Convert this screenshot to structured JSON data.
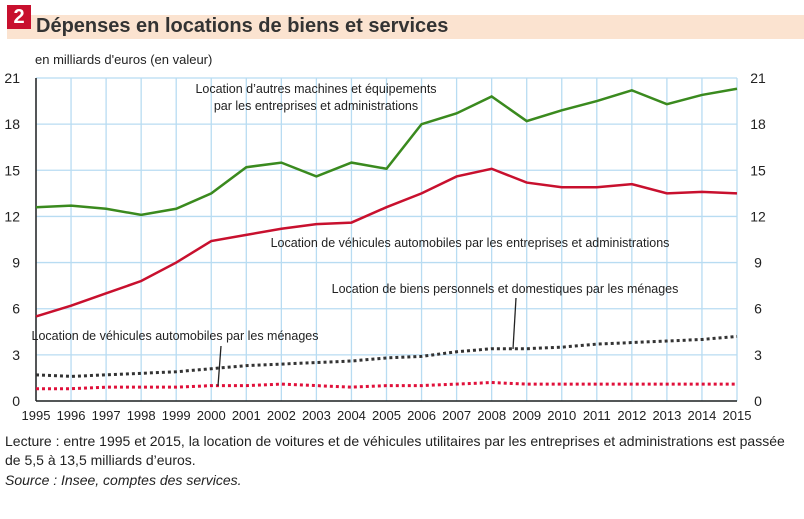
{
  "header": {
    "number": "2",
    "title": "Dépenses en locations de biens et services"
  },
  "footer": {
    "note": "Lecture : entre 1995 et 2015, la location de voitures et de véhicules utilitaires par les entreprises et administrations est passée de 5,5 à 13,5 milliards d’euros.",
    "source": "Source : Insee, comptes des services."
  },
  "chart_data": {
    "type": "line",
    "ylabel": "en milliards d'euros (en valeur)",
    "ylim": [
      0,
      21
    ],
    "yticks": [
      0,
      3,
      6,
      9,
      12,
      15,
      18,
      21
    ],
    "grid": true,
    "x": [
      1995,
      1996,
      1997,
      1998,
      1999,
      2000,
      2001,
      2002,
      2003,
      2004,
      2005,
      2006,
      2007,
      2008,
      2009,
      2010,
      2011,
      2012,
      2013,
      2014,
      2015
    ],
    "series": [
      {
        "name": "Location d’autres machines et équipements par les entreprises et administrations",
        "label_lines": [
          "Location d’autres machines et équipements",
          "par les entreprises et administrations"
        ],
        "color": "#3a8a1e",
        "style": "solid",
        "values": [
          12.6,
          12.7,
          12.5,
          12.1,
          12.5,
          13.5,
          15.2,
          15.5,
          14.6,
          15.5,
          15.1,
          18.0,
          18.7,
          19.8,
          18.2,
          18.9,
          19.5,
          20.2,
          19.3,
          19.9,
          20.3
        ]
      },
      {
        "name": "Location de véhicules automobiles par les entreprises et administrations",
        "label_lines": [
          "Location de véhicules automobiles par les entreprises et administrations"
        ],
        "color": "#c8102e",
        "style": "solid",
        "values": [
          5.5,
          6.2,
          7.0,
          7.8,
          9.0,
          10.4,
          10.8,
          11.2,
          11.5,
          11.6,
          12.6,
          13.5,
          14.6,
          15.1,
          14.2,
          13.9,
          13.9,
          14.1,
          13.5,
          13.6,
          13.5
        ]
      },
      {
        "name": "Location de biens personnels et domestiques par les ménages",
        "label_lines": [
          "Location de biens personnels et domestiques par les ménages"
        ],
        "color": "#333333",
        "style": "dotted",
        "values": [
          1.7,
          1.6,
          1.7,
          1.8,
          1.9,
          2.1,
          2.3,
          2.4,
          2.5,
          2.6,
          2.8,
          2.9,
          3.2,
          3.4,
          3.4,
          3.5,
          3.7,
          3.8,
          3.9,
          4.0,
          4.2
        ]
      },
      {
        "name": "Location de véhicules automobiles par les ménages",
        "label_lines": [
          "Location de véhicules automobiles par les ménages"
        ],
        "color": "#e0103a",
        "style": "dotted",
        "values": [
          0.8,
          0.8,
          0.9,
          0.9,
          0.9,
          1.0,
          1.0,
          1.1,
          1.0,
          0.9,
          1.0,
          1.0,
          1.1,
          1.2,
          1.1,
          1.1,
          1.1,
          1.1,
          1.1,
          1.1,
          1.1
        ]
      }
    ]
  }
}
